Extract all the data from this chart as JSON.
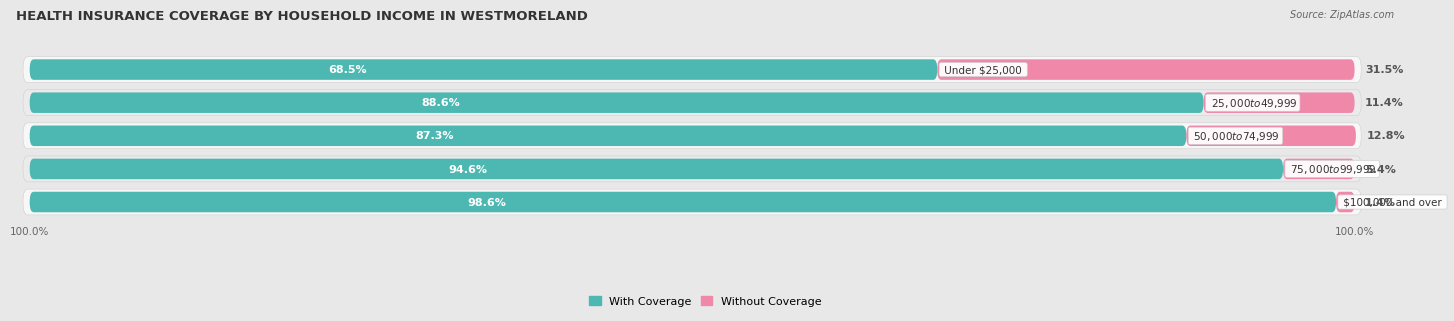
{
  "title": "HEALTH INSURANCE COVERAGE BY HOUSEHOLD INCOME IN WESTMORELAND",
  "source": "Source: ZipAtlas.com",
  "categories": [
    "Under $25,000",
    "$25,000 to $49,999",
    "$50,000 to $74,999",
    "$75,000 to $99,999",
    "$100,000 and over"
  ],
  "with_coverage": [
    68.5,
    88.6,
    87.3,
    94.6,
    98.6
  ],
  "without_coverage": [
    31.5,
    11.4,
    12.8,
    5.4,
    1.4
  ],
  "color_with": "#4db8b2",
  "color_without": "#f088aa",
  "bar_height": 0.62,
  "background_color": "#e8e8e8",
  "row_bg_light": "#f5f5f5",
  "row_bg_dark": "#e0e0e0",
  "label_color_with": "#ffffff",
  "label_color_without": "#555555",
  "title_fontsize": 9.5,
  "label_fontsize": 8,
  "tick_fontsize": 7.5,
  "legend_fontsize": 8,
  "x_max": 100
}
